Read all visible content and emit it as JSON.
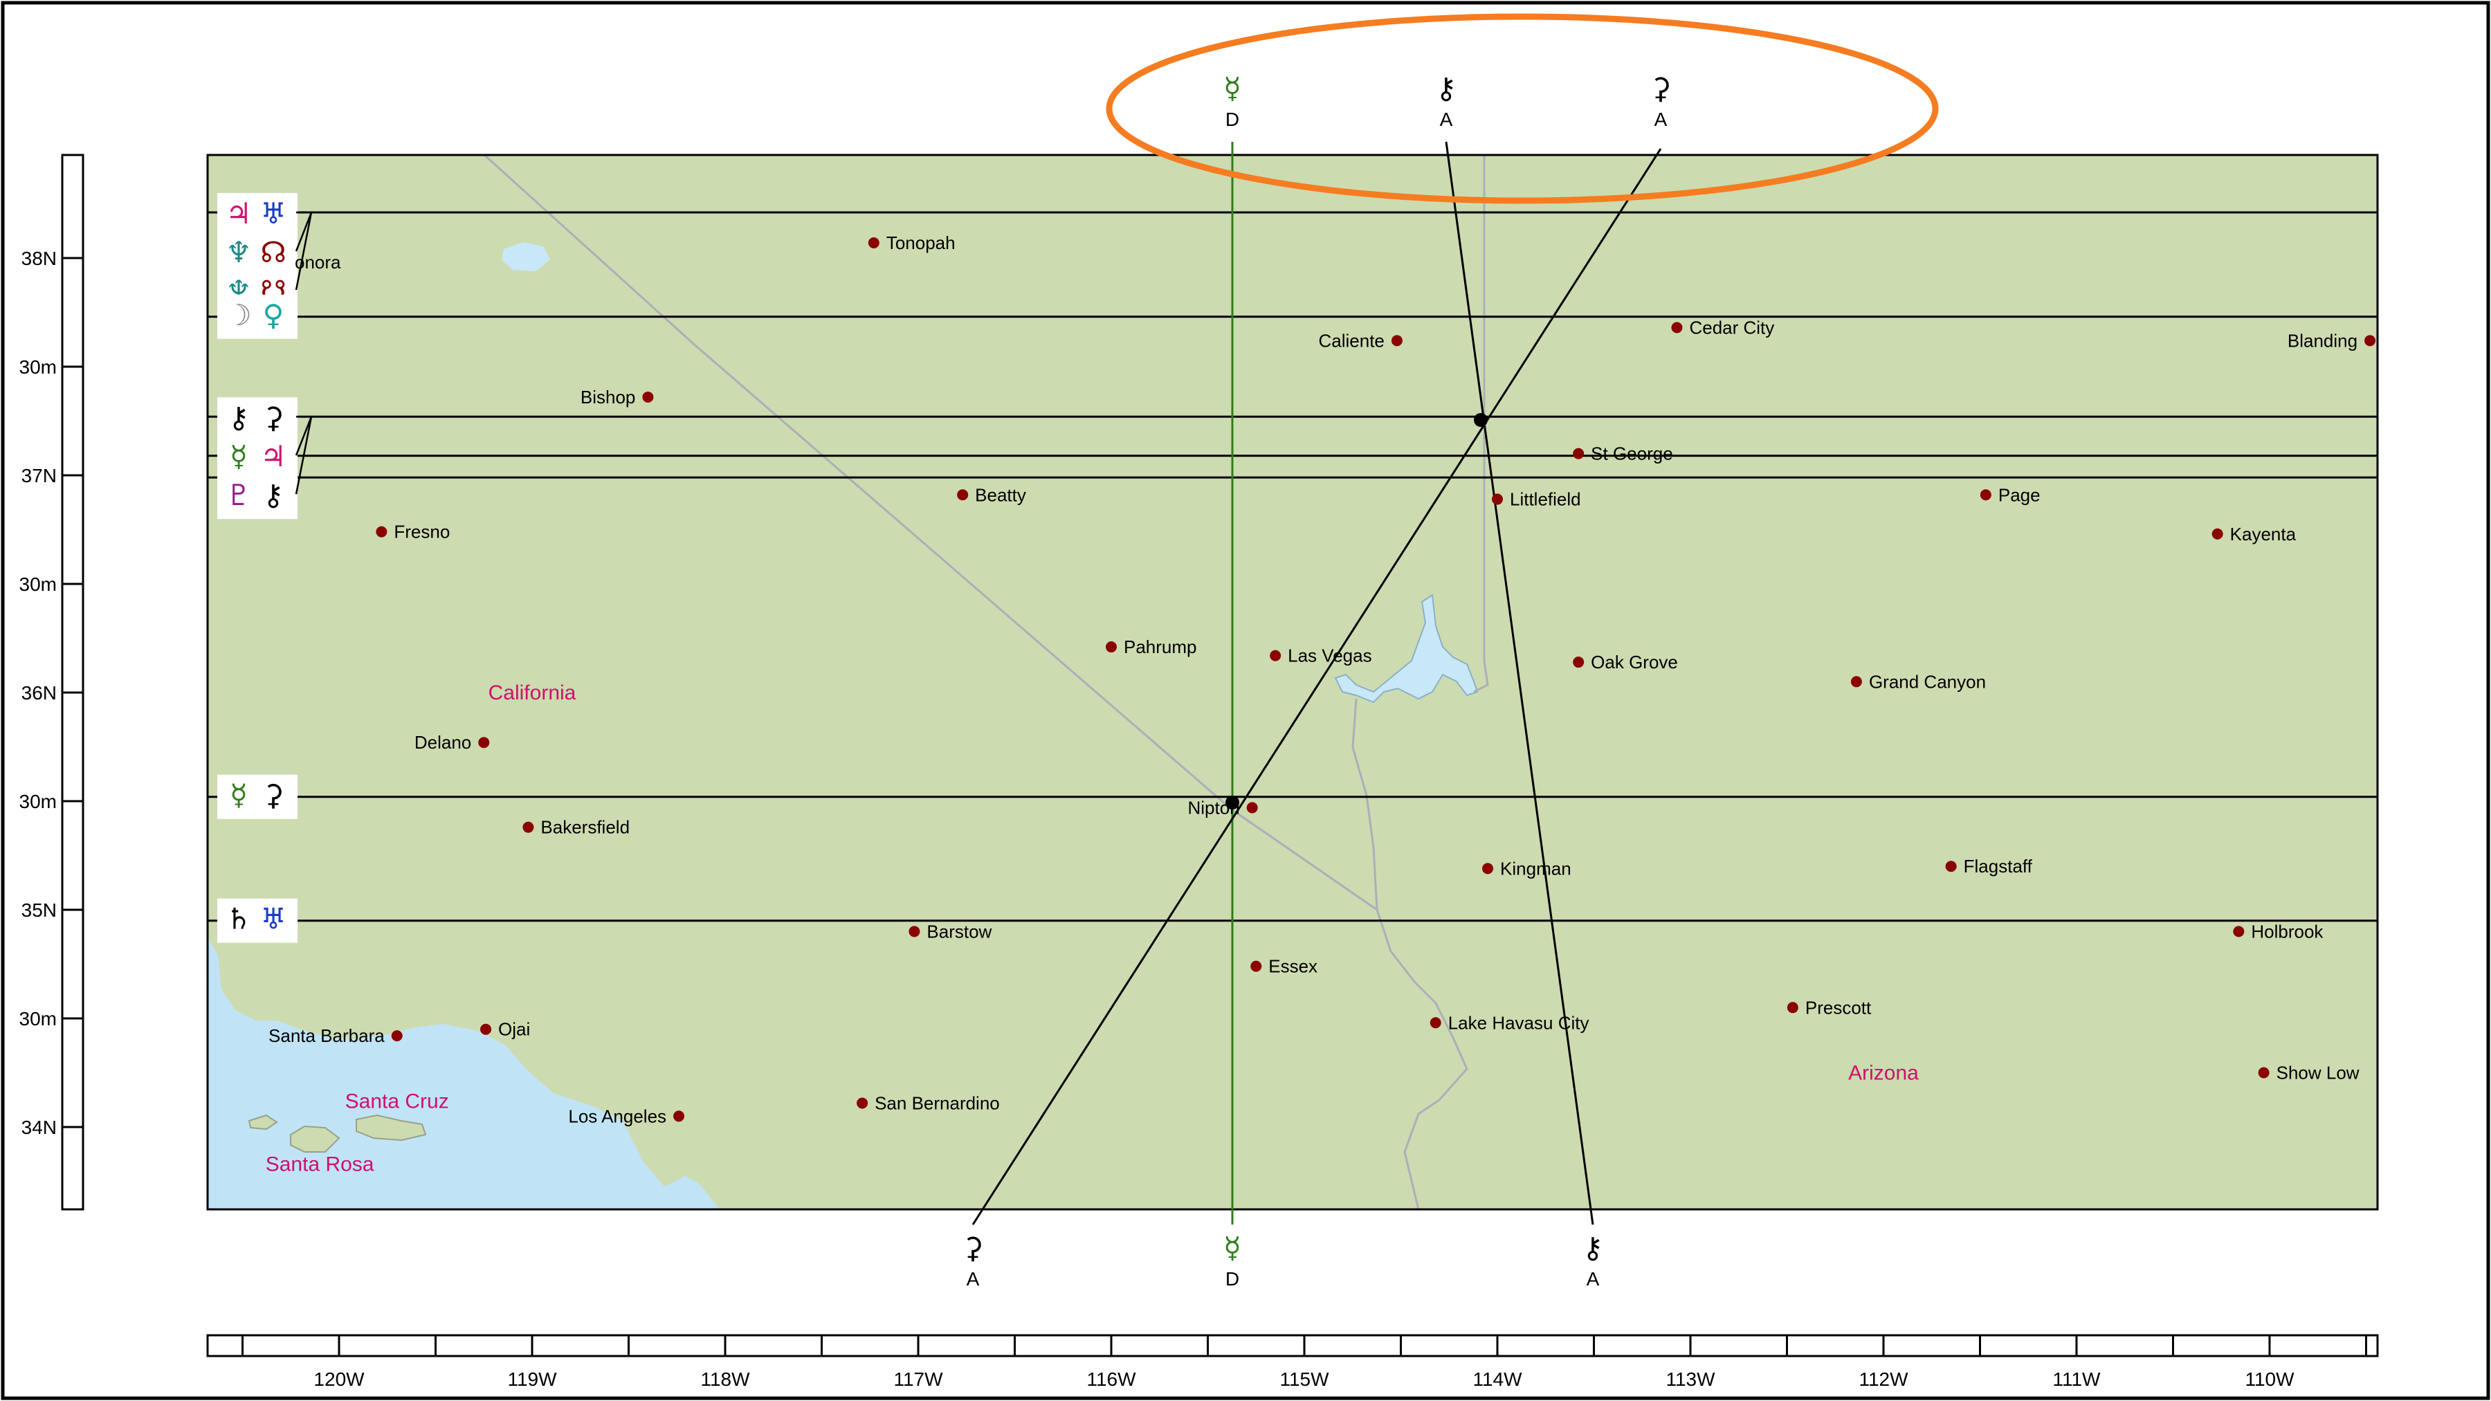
{
  "colors": {
    "land": "#cddbb0",
    "water": "#c8e8f8",
    "ocean": "#c0e4f6",
    "city_dot": "#8b0000",
    "state_text": "#d0106a",
    "highlight": "#f57c20",
    "green_line": "#2e7d1a",
    "border_gray": "#aab0b8"
  },
  "cities": [
    {
      "name": "Tonopah",
      "lon": -117.23,
      "lat": 38.07
    },
    {
      "name": "Caliente",
      "lon": -114.52,
      "lat": 37.62
    },
    {
      "name": "Cedar City",
      "lon": -113.07,
      "lat": 37.68
    },
    {
      "name": "Blanding",
      "lon": -109.48,
      "lat": 37.62
    },
    {
      "name": "Bishop",
      "lon": -118.4,
      "lat": 37.36
    },
    {
      "name": "St George",
      "lon": -113.58,
      "lat": 37.1
    },
    {
      "name": "Beatty",
      "lon": -116.77,
      "lat": 36.91
    },
    {
      "name": "Littlefield",
      "lon": -114.0,
      "lat": 36.89
    },
    {
      "name": "Page",
      "lon": -111.47,
      "lat": 36.91
    },
    {
      "name": "Kayenta",
      "lon": -110.27,
      "lat": 36.73
    },
    {
      "name": "Fresno",
      "lon": -119.78,
      "lat": 36.74
    },
    {
      "name": "Pahrump",
      "lon": -116.0,
      "lat": 36.21
    },
    {
      "name": "Las Vegas",
      "lon": -115.15,
      "lat": 36.17
    },
    {
      "name": "Oak Grove",
      "lon": -113.58,
      "lat": 36.14
    },
    {
      "name": "Grand Canyon",
      "lon": -112.14,
      "lat": 36.05
    },
    {
      "name": "Delano",
      "lon": -119.25,
      "lat": 35.77
    },
    {
      "name": "Nipton",
      "lon": -115.27,
      "lat": 35.47
    },
    {
      "name": "Bakersfield",
      "lon": -119.02,
      "lat": 35.38
    },
    {
      "name": "Kingman",
      "lon": -114.05,
      "lat": 35.19
    },
    {
      "name": "Flagstaff",
      "lon": -111.65,
      "lat": 35.2
    },
    {
      "name": "Barstow",
      "lon": -117.02,
      "lat": 34.9
    },
    {
      "name": "Holbrook",
      "lon": -110.16,
      "lat": 34.9
    },
    {
      "name": "Essex",
      "lon": -115.25,
      "lat": 34.74
    },
    {
      "name": "Prescott",
      "lon": -112.47,
      "lat": 34.55
    },
    {
      "name": "Lake Havasu City",
      "lon": -114.32,
      "lat": 34.48
    },
    {
      "name": "Santa Barbara",
      "lon": -119.7,
      "lat": 34.42
    },
    {
      "name": "Ojai",
      "lon": -119.24,
      "lat": 34.45
    },
    {
      "name": "Show Low",
      "lon": -110.03,
      "lat": 34.25
    },
    {
      "name": "San Bernardino",
      "lon": -117.29,
      "lat": 34.11
    },
    {
      "name": "Los Angeles",
      "lon": -118.24,
      "lat": 34.05
    }
  ],
  "partial_labels": {
    "sonora": "onora"
  },
  "states": [
    {
      "name": "California",
      "lon": -119.0,
      "lat": 36.0
    },
    {
      "name": "Arizona",
      "lon": -112.0,
      "lat": 34.25
    }
  ],
  "islands": [
    {
      "name": "Santa Cruz",
      "lon": -119.7,
      "lat": 34.12
    },
    {
      "name": "Santa Rosa",
      "lon": -120.1,
      "lat": 33.83
    }
  ],
  "lat_axis": {
    "ticks": [
      {
        "lat": 38.0,
        "label": "38N"
      },
      {
        "lat": 37.5,
        "label": "30m"
      },
      {
        "lat": 37.0,
        "label": "37N"
      },
      {
        "lat": 36.5,
        "label": "30m"
      },
      {
        "lat": 36.0,
        "label": "36N"
      },
      {
        "lat": 35.5,
        "label": "30m"
      },
      {
        "lat": 35.0,
        "label": "35N"
      },
      {
        "lat": 34.5,
        "label": "30m"
      },
      {
        "lat": 34.0,
        "label": "34N"
      }
    ]
  },
  "lon_axis": {
    "ticks": [
      {
        "lon": -120,
        "label": "120W"
      },
      {
        "lon": -119,
        "label": "119W"
      },
      {
        "lon": -118,
        "label": "118W"
      },
      {
        "lon": -117,
        "label": "117W"
      },
      {
        "lon": -116,
        "label": "116W"
      },
      {
        "lon": -115,
        "label": "115W"
      },
      {
        "lon": -114,
        "label": "114W"
      },
      {
        "lon": -113,
        "label": "113W"
      },
      {
        "lon": -112,
        "label": "112W"
      },
      {
        "lon": -111,
        "label": "111W"
      },
      {
        "lon": -110,
        "label": "110W"
      }
    ]
  },
  "parans": [
    {
      "lat": 38.21,
      "glyphs": [
        {
          "symbol": "♃",
          "color": "#d0106a",
          "icon": "jupiter-icon"
        },
        {
          "symbol": "♅",
          "color": "#1a3cc8",
          "icon": "uranus-icon"
        },
        {
          "symbol": "♆",
          "color": "#1a8a8a",
          "icon": "neptune-icon"
        },
        {
          "symbol": "☊",
          "color": "#8b0000",
          "icon": "north-node-icon"
        },
        {
          "symbol": "♆",
          "color": "#1a8a8a",
          "icon": "neptune-icon"
        },
        {
          "symbol": "☋",
          "color": "#8b0000",
          "icon": "south-node-icon"
        }
      ]
    },
    {
      "lat": 37.73,
      "glyphs": [
        {
          "symbol": "☽",
          "color": "#888888",
          "icon": "moon-icon"
        },
        {
          "symbol": "♀",
          "color": "#1aa8a0",
          "icon": "venus-icon"
        }
      ]
    },
    {
      "lat": 37.27,
      "glyphs": [
        {
          "symbol": "⚷",
          "color": "#000000",
          "icon": "chiron-icon"
        },
        {
          "symbol": "⚳",
          "color": "#000000",
          "icon": "ceres-icon"
        },
        {
          "symbol": "☿",
          "color": "#2e7d1a",
          "icon": "mercury-icon"
        },
        {
          "symbol": "♃",
          "color": "#d0106a",
          "icon": "jupiter-icon"
        },
        {
          "symbol": "♇",
          "color": "#9a1a8a",
          "icon": "pluto-icon"
        },
        {
          "symbol": "⚷",
          "color": "#000000",
          "icon": "chiron-icon"
        }
      ]
    },
    {
      "lat": 35.52,
      "glyphs": [
        {
          "symbol": "☿",
          "color": "#2e7d1a",
          "icon": "mercury-icon"
        },
        {
          "symbol": "⚳",
          "color": "#000000",
          "icon": "ceres-icon"
        }
      ]
    },
    {
      "lat": 34.95,
      "glyphs": [
        {
          "symbol": "♄",
          "color": "#000000",
          "icon": "saturn-icon"
        },
        {
          "symbol": "♅",
          "color": "#1a3cc8",
          "icon": "uranus-icon"
        }
      ]
    }
  ],
  "paran_extra_lats": [
    37.09,
    36.99
  ],
  "planet_lines": [
    {
      "name": "mercury-dsc-line",
      "symbol": "☿",
      "color": "#2e7d1a",
      "label": "D",
      "icon": "mercury-icon"
    },
    {
      "name": "chiron-asc-line",
      "symbol": "⚷",
      "color": "#000000",
      "label": "A",
      "icon": "chiron-icon"
    },
    {
      "name": "ceres-asc-line",
      "symbol": "⚳",
      "color": "#000000",
      "label": "A",
      "icon": "ceres-icon"
    }
  ]
}
